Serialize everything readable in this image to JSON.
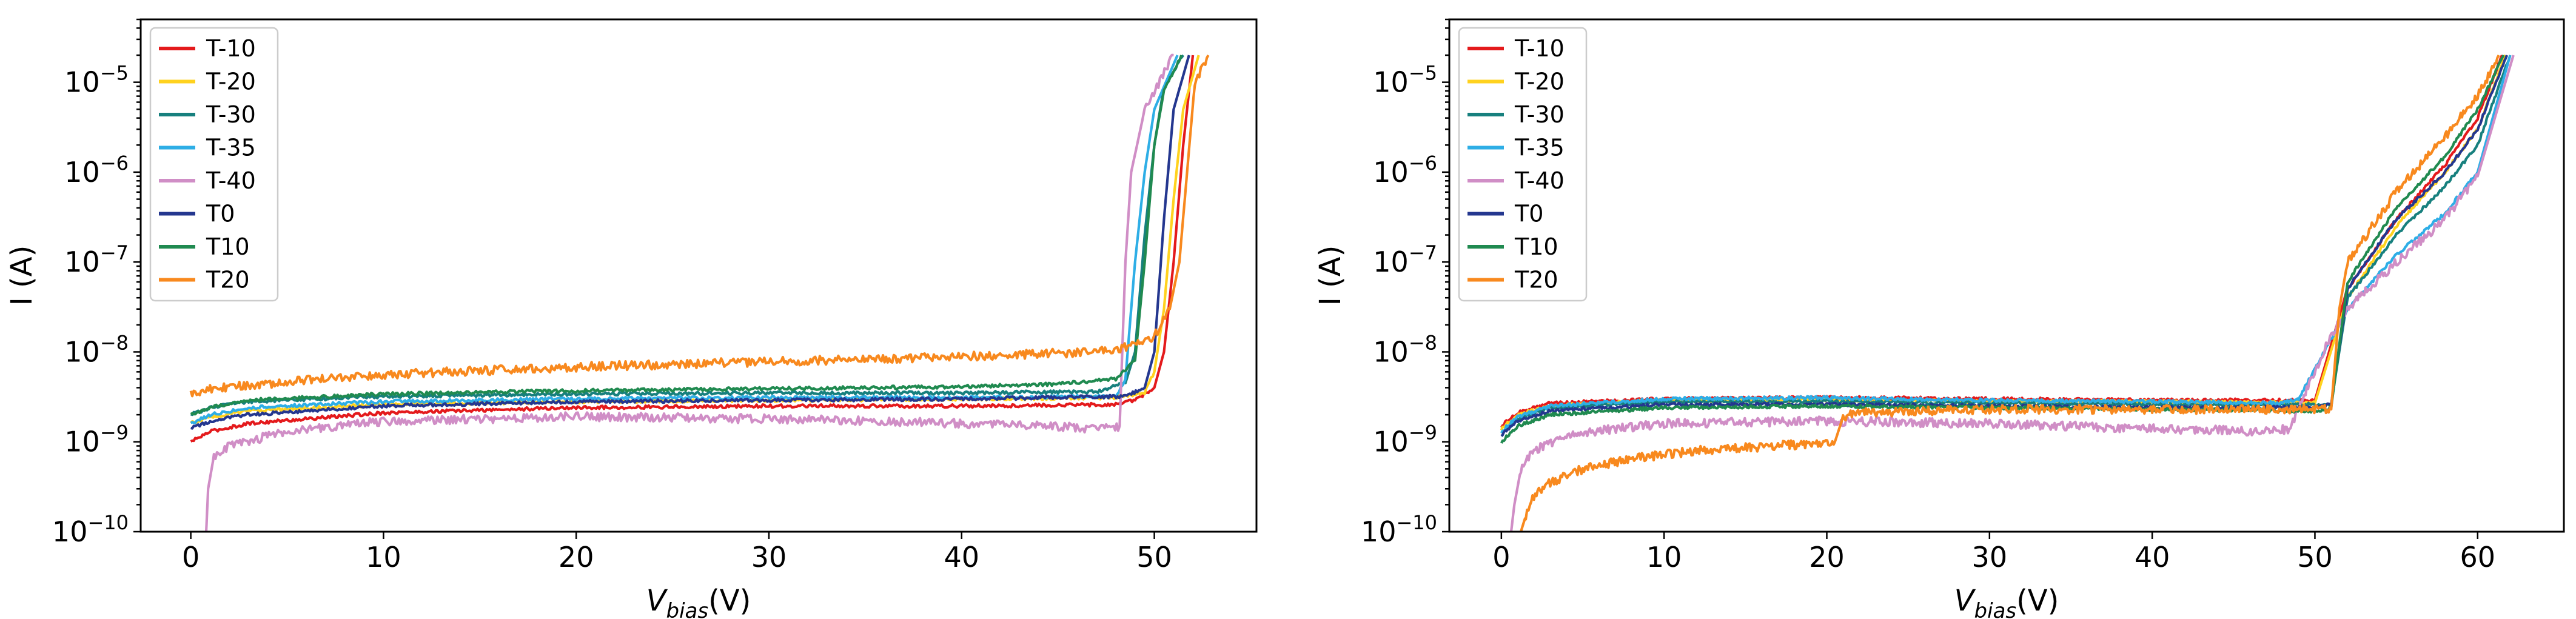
{
  "chart_data": [
    {
      "type": "line",
      "xlabel": "V_bias(V)",
      "xlabel_main": "V",
      "xlabel_sub": "bias",
      "xlabel_tail": "(V)",
      "ylabel": "I (A)",
      "yscale": "log",
      "xlim": [
        -2.6,
        55.3
      ],
      "ylim": [
        1e-10,
        5e-05
      ],
      "xticks": [
        "0",
        "10",
        "20",
        "30",
        "40",
        "50"
      ],
      "yticks": [
        "10^-10",
        "10^-9",
        "10^-8",
        "10^-7",
        "10^-6",
        "10^-5"
      ],
      "legend_position": "top-left",
      "series": [
        {
          "name": "T-10",
          "color": "#e41a1c",
          "x": [
            0,
            1,
            3,
            10,
            20,
            30,
            40,
            48,
            49,
            50,
            50.5,
            51,
            51.5,
            52
          ],
          "y": [
            1e-09,
            1.3e-09,
            1.6e-09,
            2.1e-09,
            2.4e-09,
            2.5e-09,
            2.5e-09,
            2.6e-09,
            2.9e-09,
            4e-09,
            1e-08,
            1e-07,
            2e-06,
            2e-05
          ]
        },
        {
          "name": "T-20",
          "color": "#ffd21f",
          "x": [
            0,
            1,
            3,
            10,
            20,
            30,
            40,
            48,
            49.5,
            50,
            50.5,
            51,
            51.5,
            52.3
          ],
          "y": [
            1.6e-09,
            1.9e-09,
            2.2e-09,
            2.6e-09,
            2.8e-09,
            2.9e-09,
            3e-09,
            3.1e-09,
            3.5e-09,
            6e-09,
            3e-08,
            5e-07,
            5e-06,
            2e-05
          ]
        },
        {
          "name": "T-30",
          "color": "#17807e",
          "x": [
            0,
            1,
            3,
            10,
            20,
            30,
            40,
            47,
            48.5,
            49,
            49.5,
            50,
            50.5,
            51.5
          ],
          "y": [
            2e-09,
            2.4e-09,
            2.8e-09,
            3.2e-09,
            3.4e-09,
            3.5e-09,
            3.5e-09,
            3.6e-09,
            4.5e-09,
            1e-08,
            2e-07,
            2e-06,
            9e-06,
            2e-05
          ]
        },
        {
          "name": "T-35",
          "color": "#2eaee6",
          "x": [
            0,
            1,
            3,
            10,
            20,
            30,
            40,
            48,
            48.5,
            49,
            49.5,
            50,
            51.2
          ],
          "y": [
            1.6e-09,
            2e-09,
            2.4e-09,
            2.8e-09,
            3e-09,
            3.1e-09,
            3.1e-09,
            3.2e-09,
            5e-09,
            1e-07,
            1e-06,
            5e-06,
            2e-05
          ]
        },
        {
          "name": "T-40",
          "color": "#d08ec6",
          "x": [
            0.8,
            0.9,
            1.2,
            2,
            5,
            10,
            20,
            30,
            40,
            47.5,
            48.2,
            48.5,
            48.8,
            49.5,
            51
          ],
          "y": [
            1e-10,
            3e-10,
            7e-10,
            9e-10,
            1.3e-09,
            1.7e-09,
            1.9e-09,
            1.8e-09,
            1.6e-09,
            1.4e-09,
            1.5e-09,
            1e-07,
            1e-06,
            5e-06,
            2e-05
          ]
        },
        {
          "name": "T0",
          "color": "#24378f",
          "x": [
            0,
            1,
            3,
            10,
            20,
            30,
            40,
            48.5,
            49.5,
            50,
            50.5,
            51,
            51.8
          ],
          "y": [
            1.4e-09,
            1.7e-09,
            2e-09,
            2.5e-09,
            2.8e-09,
            2.9e-09,
            3e-09,
            3.2e-09,
            4e-09,
            1e-08,
            3e-07,
            5e-06,
            2e-05
          ]
        },
        {
          "name": "T10",
          "color": "#208a50",
          "x": [
            0,
            1,
            3,
            10,
            20,
            30,
            40,
            45,
            48,
            49,
            49.5,
            50,
            50.5,
            51.4
          ],
          "y": [
            2e-09,
            2.4e-09,
            2.9e-09,
            3.4e-09,
            3.7e-09,
            3.9e-09,
            4.1e-09,
            4.4e-09,
            5e-09,
            8e-09,
            1e-07,
            2e-06,
            8e-06,
            2e-05
          ]
        },
        {
          "name": "T20",
          "color": "#f8891e",
          "x": [
            0,
            1,
            3,
            10,
            20,
            30,
            40,
            46,
            48,
            49,
            50,
            50.8,
            51.3,
            51.7,
            52.1,
            52.8
          ],
          "y": [
            3.5e-09,
            3.9e-09,
            4.3e-09,
            5.6e-09,
            6.8e-09,
            7.8e-09,
            8.9e-09,
            9.8e-09,
            1.08e-08,
            1.2e-08,
            1.5e-08,
            3e-08,
            1e-07,
            1e-06,
            1e-05,
            2e-05
          ]
        }
      ]
    },
    {
      "type": "line",
      "xlabel": "V_bias(V)",
      "xlabel_main": "V",
      "xlabel_sub": "bias",
      "xlabel_tail": "(V)",
      "ylabel": "I (A)",
      "yscale": "log",
      "xlim": [
        -3.2,
        65.3
      ],
      "ylim": [
        1e-10,
        5e-05
      ],
      "xticks": [
        "0",
        "10",
        "20",
        "30",
        "40",
        "50",
        "60"
      ],
      "yticks": [
        "10^-10",
        "10^-9",
        "10^-8",
        "10^-7",
        "10^-6",
        "10^-5"
      ],
      "legend_position": "top-left",
      "series": [
        {
          "name": "T-10",
          "color": "#e41a1c",
          "x": [
            0,
            1,
            3,
            10,
            20,
            30,
            40,
            49,
            50,
            52,
            55,
            58,
            60,
            61.5
          ],
          "y": [
            1.5e-09,
            2.1e-09,
            2.7e-09,
            3e-09,
            3.1e-09,
            3e-09,
            2.9e-09,
            2.9e-09,
            2.9e-09,
            5e-08,
            3e-07,
            1.2e-06,
            4e-06,
            2e-05
          ]
        },
        {
          "name": "T-20",
          "color": "#ffd21f",
          "x": [
            0,
            1,
            3,
            10,
            20,
            30,
            40,
            49,
            50,
            52,
            55,
            58,
            60,
            61.7
          ],
          "y": [
            1.4e-09,
            2e-09,
            2.5e-09,
            2.9e-09,
            2.9e-09,
            2.8e-09,
            2.8e-09,
            2.7e-09,
            2.7e-09,
            4e-08,
            2.5e-07,
            1e-06,
            3e-06,
            2e-05
          ]
        },
        {
          "name": "T-30",
          "color": "#17807e",
          "x": [
            0,
            1,
            3,
            10,
            20,
            30,
            40,
            50,
            51,
            52,
            55,
            58,
            60,
            62
          ],
          "y": [
            1.2e-09,
            1.8e-09,
            2.4e-09,
            2.8e-09,
            2.8e-09,
            2.7e-09,
            2.6e-09,
            2.6e-09,
            2.6e-09,
            4e-08,
            2e-07,
            7e-07,
            2e-06,
            2e-05
          ]
        },
        {
          "name": "T-35",
          "color": "#2eaee6",
          "x": [
            0,
            1,
            3,
            10,
            20,
            30,
            40,
            48,
            49,
            52,
            55,
            58,
            60,
            62
          ],
          "y": [
            1.3e-09,
            1.9e-09,
            2.5e-09,
            3e-09,
            3.1e-09,
            2.9e-09,
            2.8e-09,
            2.7e-09,
            3e-09,
            3e-08,
            1.2e-07,
            3.5e-07,
            1e-06,
            2e-05
          ]
        },
        {
          "name": "T-40",
          "color": "#d08ec6",
          "x": [
            0.6,
            0.8,
            1.2,
            2,
            4,
            10,
            20,
            30,
            40,
            47,
            48.5,
            49.5,
            51,
            52,
            55,
            58,
            60,
            62.2
          ],
          "y": [
            1e-10,
            2e-10,
            5e-10,
            8e-10,
            1.2e-09,
            1.6e-09,
            1.7e-09,
            1.6e-09,
            1.4e-09,
            1.3e-09,
            1.4e-09,
            4e-09,
            1.5e-08,
            3e-08,
            1e-07,
            3e-07,
            9e-07,
            2e-05
          ]
        },
        {
          "name": "T0",
          "color": "#24378f",
          "x": [
            0,
            1,
            3,
            10,
            20,
            30,
            40,
            50,
            51,
            52,
            55,
            58,
            60,
            61.8
          ],
          "y": [
            1.2e-09,
            1.7e-09,
            2.2e-09,
            2.6e-09,
            2.6e-09,
            2.5e-09,
            2.4e-09,
            2.4e-09,
            2.6e-09,
            5e-08,
            3e-07,
            1e-06,
            3e-06,
            2e-05
          ]
        },
        {
          "name": "T10",
          "color": "#208a50",
          "x": [
            0,
            1,
            3,
            10,
            20,
            30,
            40,
            50,
            51,
            52,
            55,
            58,
            60,
            61.6
          ],
          "y": [
            1e-09,
            1.5e-09,
            2e-09,
            2.4e-09,
            2.5e-09,
            2.4e-09,
            2.3e-09,
            2.2e-09,
            2.4e-09,
            6e-08,
            4e-07,
            1.5e-06,
            5e-06,
            2e-05
          ]
        },
        {
          "name": "T20",
          "color": "#f8891e",
          "x": [
            1.2,
            1.5,
            2,
            3,
            5,
            8,
            12,
            17,
            20.5,
            21,
            22,
            30,
            40,
            51,
            51.5,
            52,
            55,
            58,
            60,
            61.3
          ],
          "y": [
            1e-10,
            1.5e-10,
            2.5e-10,
            3.5e-10,
            5e-10,
            6.5e-10,
            8e-10,
            9e-10,
            1e-09,
            1.9e-09,
            2.1e-09,
            2.3e-09,
            2.3e-09,
            2.3e-09,
            3e-08,
            1e-07,
            6e-07,
            2.5e-06,
            7e-06,
            2e-05
          ]
        }
      ]
    }
  ]
}
